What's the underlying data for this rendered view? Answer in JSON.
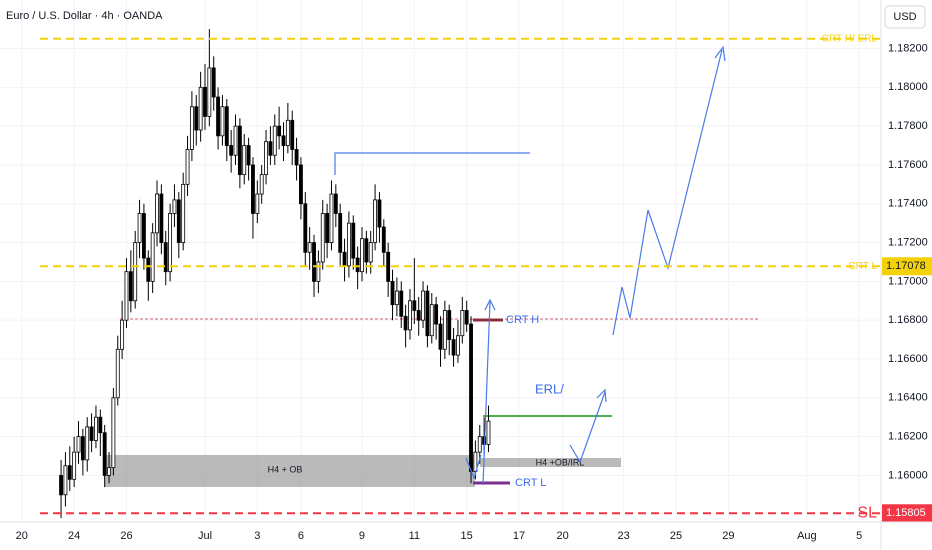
{
  "chart_data": {
    "type": "candlestick",
    "title": "Euro / U.S. Dollar · 4h · OANDA",
    "currency": "USD",
    "up_color": "#ffffff",
    "down_color": "#000000",
    "candles": [
      [
        1.16,
        1.1608,
        1.1578,
        1.159
      ],
      [
        1.159,
        1.1612,
        1.1584,
        1.1605
      ],
      [
        1.1605,
        1.1615,
        1.1592,
        1.1598
      ],
      [
        1.1598,
        1.162,
        1.1594,
        1.1612
      ],
      [
        1.1612,
        1.1628,
        1.1606,
        1.162
      ],
      [
        1.162,
        1.1624,
        1.16,
        1.1608
      ],
      [
        1.1608,
        1.163,
        1.1602,
        1.1625
      ],
      [
        1.1625,
        1.1632,
        1.1612,
        1.1618
      ],
      [
        1.1618,
        1.1636,
        1.1614,
        1.163
      ],
      [
        1.163,
        1.1634,
        1.161,
        1.1622
      ],
      [
        1.1622,
        1.1626,
        1.1594,
        1.16
      ],
      [
        1.16,
        1.1612,
        1.1596,
        1.1604
      ],
      [
        1.1604,
        1.1645,
        1.16,
        1.164
      ],
      [
        1.164,
        1.1672,
        1.1636,
        1.1665
      ],
      [
        1.1665,
        1.169,
        1.166,
        1.168
      ],
      [
        1.168,
        1.1712,
        1.1676,
        1.1705
      ],
      [
        1.1705,
        1.1716,
        1.1684,
        1.169
      ],
      [
        1.169,
        1.1726,
        1.1686,
        1.172
      ],
      [
        1.172,
        1.1742,
        1.1712,
        1.1735
      ],
      [
        1.1735,
        1.174,
        1.1706,
        1.1712
      ],
      [
        1.1712,
        1.1716,
        1.169,
        1.17
      ],
      [
        1.17,
        1.173,
        1.1694,
        1.1725
      ],
      [
        1.1725,
        1.1752,
        1.1718,
        1.1745
      ],
      [
        1.1745,
        1.175,
        1.1714,
        1.172
      ],
      [
        1.172,
        1.1726,
        1.1698,
        1.1705
      ],
      [
        1.1705,
        1.174,
        1.17,
        1.1735
      ],
      [
        1.1735,
        1.175,
        1.1728,
        1.1742
      ],
      [
        1.1742,
        1.1746,
        1.1712,
        1.172
      ],
      [
        1.172,
        1.1756,
        1.1716,
        1.175
      ],
      [
        1.175,
        1.1775,
        1.1744,
        1.1768
      ],
      [
        1.1768,
        1.1798,
        1.1762,
        1.179
      ],
      [
        1.179,
        1.1796,
        1.177,
        1.1778
      ],
      [
        1.1778,
        1.1808,
        1.1772,
        1.18
      ],
      [
        1.18,
        1.1812,
        1.1778,
        1.1785
      ],
      [
        1.1785,
        1.183,
        1.178,
        1.181
      ],
      [
        1.181,
        1.1816,
        1.1788,
        1.1795
      ],
      [
        1.1795,
        1.18,
        1.1768,
        1.1775
      ],
      [
        1.1775,
        1.1796,
        1.177,
        1.179
      ],
      [
        1.179,
        1.1794,
        1.1762,
        1.177
      ],
      [
        1.177,
        1.1778,
        1.1756,
        1.1765
      ],
      [
        1.1765,
        1.1786,
        1.176,
        1.178
      ],
      [
        1.178,
        1.1784,
        1.1748,
        1.1755
      ],
      [
        1.1755,
        1.1776,
        1.175,
        1.177
      ],
      [
        1.177,
        1.1774,
        1.1752,
        1.176
      ],
      [
        1.176,
        1.1764,
        1.1722,
        1.1735
      ],
      [
        1.1735,
        1.1752,
        1.173,
        1.1745
      ],
      [
        1.1745,
        1.176,
        1.174,
        1.1755
      ],
      [
        1.1755,
        1.1778,
        1.175,
        1.1772
      ],
      [
        1.1772,
        1.178,
        1.176,
        1.1765
      ],
      [
        1.1765,
        1.1786,
        1.176,
        1.178
      ],
      [
        1.178,
        1.179,
        1.1768,
        1.1775
      ],
      [
        1.1775,
        1.1782,
        1.1762,
        1.177
      ],
      [
        1.177,
        1.1792,
        1.1766,
        1.1783
      ],
      [
        1.1783,
        1.1788,
        1.176,
        1.1768
      ],
      [
        1.1768,
        1.1774,
        1.1752,
        1.176
      ],
      [
        1.176,
        1.1764,
        1.1732,
        1.174
      ],
      [
        1.174,
        1.1746,
        1.1708,
        1.1715
      ],
      [
        1.1715,
        1.1728,
        1.1706,
        1.172
      ],
      [
        1.172,
        1.1724,
        1.1692,
        1.17
      ],
      [
        1.17,
        1.1716,
        1.1694,
        1.171
      ],
      [
        1.171,
        1.1742,
        1.1706,
        1.1735
      ],
      [
        1.1735,
        1.174,
        1.1712,
        1.172
      ],
      [
        1.172,
        1.1752,
        1.1716,
        1.1745
      ],
      [
        1.1745,
        1.175,
        1.1728,
        1.1735
      ],
      [
        1.1735,
        1.174,
        1.1708,
        1.1715
      ],
      [
        1.1715,
        1.1722,
        1.17,
        1.1708
      ],
      [
        1.1708,
        1.1736,
        1.1702,
        1.173
      ],
      [
        1.173,
        1.1734,
        1.1706,
        1.1712
      ],
      [
        1.1712,
        1.1718,
        1.1696,
        1.1705
      ],
      [
        1.1705,
        1.1728,
        1.17,
        1.1722
      ],
      [
        1.1722,
        1.1726,
        1.1704,
        1.171
      ],
      [
        1.171,
        1.1726,
        1.1704,
        1.172
      ],
      [
        1.172,
        1.175,
        1.1716,
        1.1742
      ],
      [
        1.1742,
        1.1746,
        1.172,
        1.1728
      ],
      [
        1.1728,
        1.1732,
        1.1708,
        1.1715
      ],
      [
        1.1715,
        1.172,
        1.1692,
        1.17
      ],
      [
        1.17,
        1.1706,
        1.168,
        1.1688
      ],
      [
        1.1688,
        1.1702,
        1.1682,
        1.1695
      ],
      [
        1.1695,
        1.17,
        1.1676,
        1.1682
      ],
      [
        1.1682,
        1.1688,
        1.1666,
        1.1675
      ],
      [
        1.1675,
        1.1696,
        1.167,
        1.169
      ],
      [
        1.169,
        1.1712,
        1.1678,
        1.1685
      ],
      [
        1.1685,
        1.1692,
        1.1672,
        1.168
      ],
      [
        1.168,
        1.17,
        1.1676,
        1.1695
      ],
      [
        1.1695,
        1.1698,
        1.1666,
        1.1672
      ],
      [
        1.1672,
        1.1694,
        1.1668,
        1.1688
      ],
      [
        1.1688,
        1.1692,
        1.167,
        1.1678
      ],
      [
        1.1678,
        1.1682,
        1.1656,
        1.1665
      ],
      [
        1.1665,
        1.169,
        1.166,
        1.1685
      ],
      [
        1.1685,
        1.1688,
        1.1662,
        1.167
      ],
      [
        1.167,
        1.1676,
        1.1656,
        1.1662
      ],
      [
        1.1662,
        1.168,
        1.1658,
        1.1672
      ],
      [
        1.1672,
        1.1692,
        1.1668,
        1.1685
      ],
      [
        1.1685,
        1.169,
        1.1674,
        1.1678
      ],
      [
        1.1678,
        1.1682,
        1.1596,
        1.1602
      ],
      [
        1.1602,
        1.1618,
        1.1598,
        1.1612
      ],
      [
        1.1612,
        1.1626,
        1.1606,
        1.162
      ],
      [
        1.162,
        1.163,
        1.161,
        1.1616
      ],
      [
        1.1616,
        1.1636,
        1.1612,
        1.1628
      ]
    ],
    "xlim": [
      -14,
      188
    ],
    "xticks": [
      {
        "value": -9,
        "label": "20"
      },
      {
        "value": 3,
        "label": "24"
      },
      {
        "value": 15,
        "label": "26"
      },
      {
        "value": 33,
        "label": "Jul"
      },
      {
        "value": 45,
        "label": "3"
      },
      {
        "value": 55,
        "label": "6"
      },
      {
        "value": 69,
        "label": "9"
      },
      {
        "value": 81,
        "label": "11"
      },
      {
        "value": 93,
        "label": "15"
      },
      {
        "value": 105,
        "label": "17"
      },
      {
        "value": 115,
        "label": "20"
      },
      {
        "value": 129,
        "label": "23"
      },
      {
        "value": 141,
        "label": "25"
      },
      {
        "value": 153,
        "label": "29"
      },
      {
        "value": 171,
        "label": "Aug"
      },
      {
        "value": 183,
        "label": "5"
      }
    ],
    "ylim": [
      1.1576,
      1.1845
    ],
    "yticks": [
      {
        "value": 1.16,
        "label": "1.16000"
      },
      {
        "value": 1.162,
        "label": "1.16200"
      },
      {
        "value": 1.164,
        "label": "1.16400"
      },
      {
        "value": 1.166,
        "label": "1.16600"
      },
      {
        "value": 1.168,
        "label": "1.16800"
      },
      {
        "value": 1.17,
        "label": "1.17000"
      },
      {
        "value": 1.172,
        "label": "1.17200"
      },
      {
        "value": 1.174,
        "label": "1.17400"
      },
      {
        "value": 1.176,
        "label": "1.17600"
      },
      {
        "value": 1.178,
        "label": "1.17800"
      },
      {
        "value": 1.18,
        "label": "1.18000"
      },
      {
        "value": 1.182,
        "label": "1.18200"
      }
    ],
    "levels": [
      {
        "label": "CRT H/ ERL",
        "value": 1.1825,
        "color": "#f5d10a",
        "price_tag": false
      },
      {
        "label": "CRT L",
        "value": 1.17078,
        "color": "#f5d10a",
        "price_tag": true
      },
      {
        "label": "SL",
        "value": 1.15805,
        "color": "#f23645",
        "price_tag": true
      }
    ],
    "annotations": {
      "ob": "H4 + OB",
      "ob_irl": "H4 +OB/IRL",
      "crt_h": "CRT H",
      "crt_l": "CRT L",
      "erl": "ERL/"
    }
  }
}
